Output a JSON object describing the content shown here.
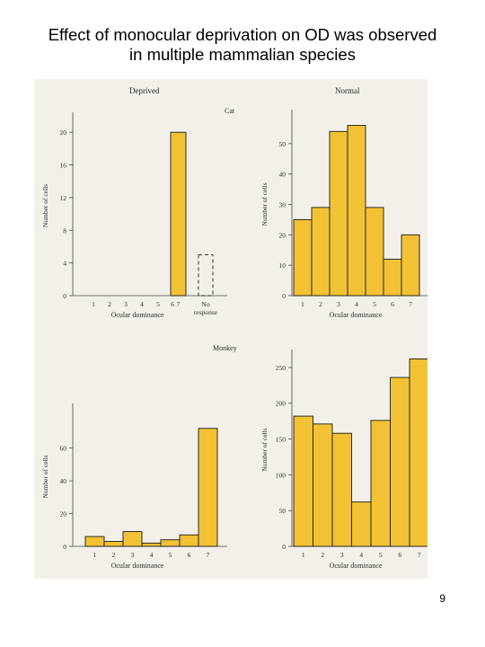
{
  "slide": {
    "title_line1": "Effect of monocular deprivation on OD was observed",
    "title_line2": "in multiple mammalian species",
    "page_number": "9"
  },
  "figure": {
    "headings": {
      "deprived": "Deprived",
      "normal": "Normal",
      "cat": "Cat",
      "monkey": "Monkey"
    }
  },
  "colors": {
    "bar": "#f2c234",
    "bar_edge": "#1a1a1a",
    "figure_bg": "#f3f0ea"
  },
  "chart_data": [
    {
      "type": "bar",
      "panel": "cat-deprived",
      "categories": [
        "1",
        "2",
        "3",
        "4",
        "5",
        "6",
        "7",
        "No response"
      ],
      "values": [
        0,
        0,
        0,
        0,
        0,
        0,
        20,
        5
      ],
      "dashed_categories": [
        "No response"
      ],
      "xlabel": "Ocular dominance",
      "ylabel": "Number of cells",
      "ylim": [
        0,
        22
      ],
      "yticks": [
        0,
        4,
        8,
        12,
        16,
        20
      ]
    },
    {
      "type": "bar",
      "panel": "cat-normal",
      "categories": [
        "1",
        "2",
        "3",
        "4",
        "5",
        "6",
        "7"
      ],
      "values": [
        25,
        29,
        54,
        56,
        29,
        12,
        20
      ],
      "xlabel": "Ocular dominance",
      "ylabel": "Number of cells",
      "ylim": [
        0,
        60
      ],
      "yticks": [
        0,
        10,
        20,
        30,
        40,
        50
      ]
    },
    {
      "type": "bar",
      "panel": "monkey-deprived",
      "categories": [
        "1",
        "2",
        "3",
        "4",
        "5",
        "6",
        "7"
      ],
      "values": [
        6,
        3,
        9,
        2,
        4,
        7,
        72
      ],
      "xlabel": "Ocular dominance",
      "ylabel": "Number of cells",
      "ylim": [
        0,
        85
      ],
      "yticks": [
        0,
        20,
        40,
        60
      ]
    },
    {
      "type": "bar",
      "panel": "monkey-normal",
      "categories": [
        "1",
        "2",
        "3",
        "4",
        "5",
        "6",
        "7"
      ],
      "values": [
        182,
        171,
        158,
        62,
        176,
        236,
        262
      ],
      "xlabel": "Ocular dominance",
      "ylabel": "Number of cells",
      "ylim": [
        0,
        270
      ],
      "yticks": [
        0,
        50,
        100,
        150,
        200,
        250
      ]
    }
  ]
}
